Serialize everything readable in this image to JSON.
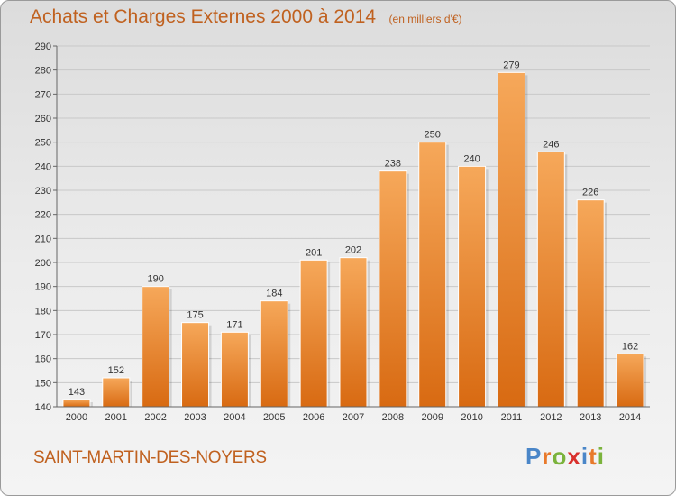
{
  "title": "Achats et Charges Externes 2000 à 2014",
  "unit": "(en milliers d'€)",
  "commune": "SAINT-MARTIN-DES-NOYERS",
  "logo": {
    "text": "Proxiti",
    "letter_colors": [
      "#4a86c8",
      "#e8792b",
      "#7bb33c",
      "#d9302c",
      "#4a86c8",
      "#e8792b",
      "#7bb33c"
    ]
  },
  "colors": {
    "bar_light": "#f6a85a",
    "bar_dark": "#d86a12",
    "text": "#c0611f",
    "grid": "#c8c8c8"
  },
  "chart_data": {
    "type": "bar",
    "title": "Achats et Charges Externes 2000 à 2014",
    "subtitle": "(en milliers d'€)",
    "categories": [
      "2000",
      "2001",
      "2002",
      "2003",
      "2004",
      "2005",
      "2006",
      "2007",
      "2008",
      "2009",
      "2010",
      "2011",
      "2012",
      "2013",
      "2014"
    ],
    "values": [
      143,
      152,
      190,
      175,
      171,
      184,
      201,
      202,
      238,
      250,
      240,
      279,
      246,
      226,
      162
    ],
    "ylim": [
      140,
      290
    ],
    "yticks": [
      140,
      150,
      160,
      170,
      180,
      190,
      200,
      210,
      220,
      230,
      240,
      250,
      260,
      270,
      280,
      290
    ],
    "xlabel": "",
    "ylabel": "",
    "grid": "horizontal",
    "data_labels": true
  }
}
